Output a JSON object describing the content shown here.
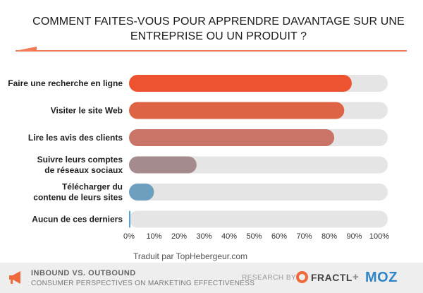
{
  "title": "COMMENT FAITES-VOUS POUR APPRENDRE DAVANTAGE SUR UNE ENTREPRISE OU UN PRODUIT ?",
  "chart_data": {
    "type": "bar",
    "orientation": "horizontal",
    "categories": [
      [
        "Faire une recherche en ligne"
      ],
      [
        "Visiter le site Web"
      ],
      [
        "Lire les avis des clients"
      ],
      [
        "Suivre leurs comptes",
        "de réseaux sociaux"
      ],
      [
        "Télécharger du",
        "contenu de leurs sites"
      ],
      [
        "Aucun de ces derniers"
      ]
    ],
    "values": [
      89,
      86,
      82,
      27,
      10,
      0.5
    ],
    "colors": [
      "#ed5330",
      "#dd6545",
      "#c97466",
      "#a58b8d",
      "#6e9fbe",
      "#4fa4d8"
    ],
    "track_color": "#e5e5e5",
    "xlim": [
      0,
      100
    ],
    "ticks": [
      0,
      10,
      20,
      30,
      40,
      50,
      60,
      70,
      80,
      90,
      100
    ],
    "tick_labels": [
      "0%",
      "10%",
      "20%",
      "30%",
      "40%",
      "50%",
      "60%",
      "70%",
      "80%",
      "90%",
      "100%"
    ],
    "xlabel": "",
    "ylabel": ""
  },
  "credit": "Traduit par TopHebergeur.com",
  "footer": {
    "title": "INBOUND VS. OUTBOUND",
    "subtitle": "CONSUMER PERSPECTIVES ON MARKETING EFFECTIVENESS",
    "research_by": "RESEARCH BY >",
    "fractl": "FRACTL",
    "plus": "+",
    "moz": "MOZ"
  }
}
